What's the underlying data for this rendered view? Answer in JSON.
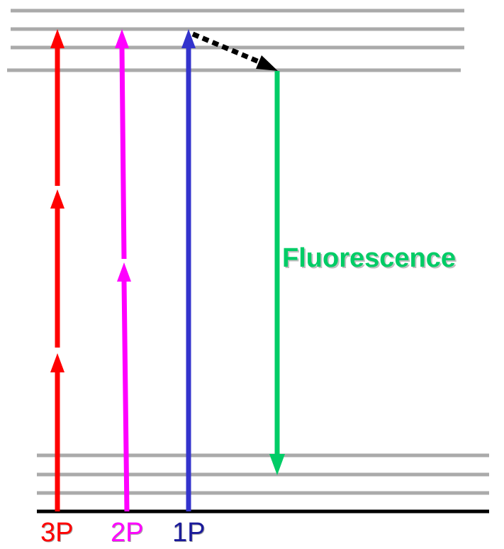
{
  "labels": {
    "three_photon": "3P",
    "two_photon": "2P",
    "one_photon": "1P",
    "fluorescence": "Fluorescence"
  },
  "colors": {
    "three_photon": "#ff0000",
    "two_photon": "#ff00ff",
    "one_photon": "#3333cc",
    "fluorescence": "#00cc66",
    "relaxation": "#000000",
    "energy_level": "#aaaaaa",
    "ground_baseline": "#000000"
  },
  "icons": {
    "three_photon": "arrow-up-icon",
    "two_photon": "arrow-up-icon",
    "one_photon": "arrow-up-icon",
    "fluorescence": "arrow-down-icon",
    "relaxation": "dotted-arrow-icon"
  }
}
